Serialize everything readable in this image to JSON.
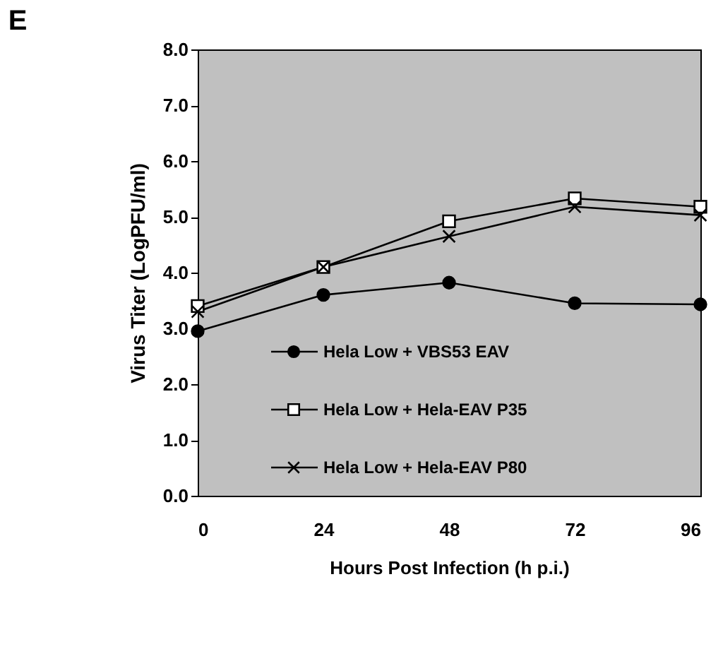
{
  "chart_data": {
    "type": "line",
    "title": "E",
    "xlabel": "Hours Post Infection (h p.i.)",
    "ylabel": "Virus Titer (LogPFU/ml)",
    "x": [
      0,
      24,
      48,
      72,
      96
    ],
    "xlim": [
      0,
      96
    ],
    "xticks": [
      0,
      24,
      48,
      72,
      96
    ],
    "ylim": [
      0,
      8
    ],
    "yticks": [
      {
        "value": 0,
        "label": "0.0"
      },
      {
        "value": 1,
        "label": "1.0"
      },
      {
        "value": 2,
        "label": "2.0"
      },
      {
        "value": 3,
        "label": "3.0"
      },
      {
        "value": 4,
        "label": "4.0"
      },
      {
        "value": 5,
        "label": "5.0"
      },
      {
        "value": 6,
        "label": "6.0"
      },
      {
        "value": 7,
        "label": "7.0"
      },
      {
        "value": 8,
        "label": "8.0"
      }
    ],
    "grid": false,
    "legend": "bottom left",
    "line_style": "solid",
    "series": [
      {
        "name": "Hela Low + VBS53 EAV",
        "color": "#000000",
        "marker": "circle",
        "values": [
          2.95,
          3.6,
          3.82,
          3.45,
          3.43
        ]
      },
      {
        "name": "Hela Low + Hela-EAV P35",
        "color": "#000000",
        "marker": "square",
        "values": [
          3.4,
          4.1,
          4.92,
          5.33,
          5.18
        ]
      },
      {
        "name": "Hela Low + Hela-EAV P80",
        "color": "#000000",
        "marker": "cross",
        "values": [
          3.3,
          4.1,
          4.65,
          5.18,
          5.03
        ]
      }
    ]
  }
}
